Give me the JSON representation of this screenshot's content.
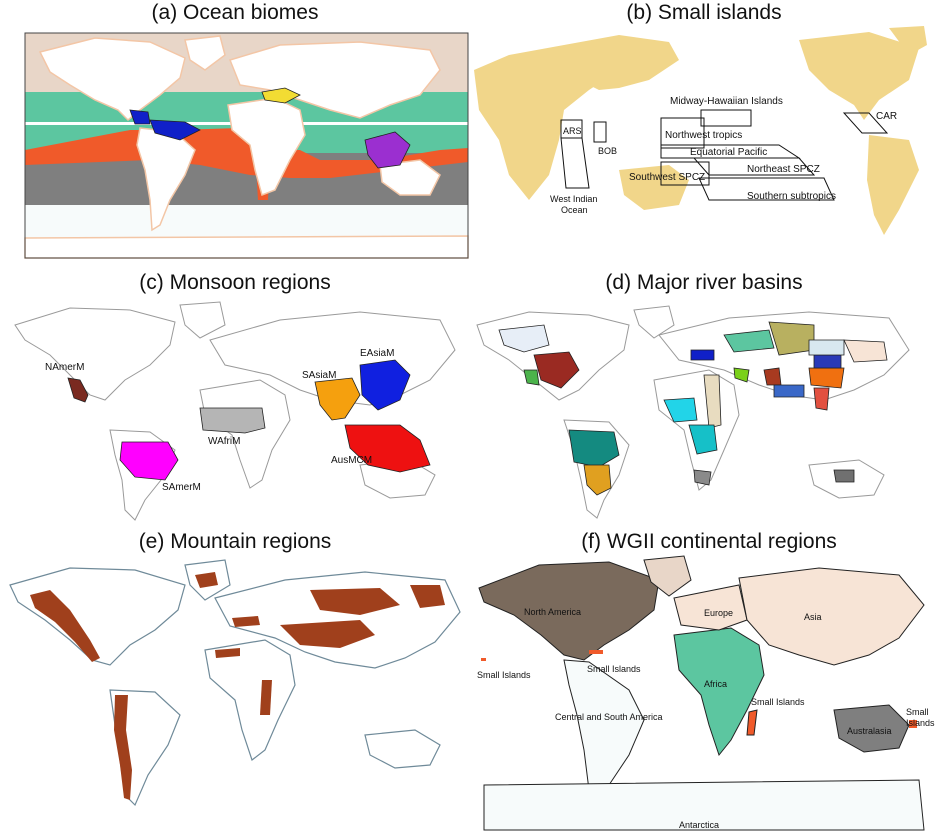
{
  "panels": {
    "a": {
      "title": "(a) Ocean biomes"
    },
    "b": {
      "title": "(b) Small islands",
      "labels": [
        "Midway-Hawaiian Islands",
        "CAR",
        "ARS",
        "BOB",
        "Northwest tropics",
        "Equatorial Pacific",
        "Northeast SPCZ",
        "Southwest SPCZ",
        "Southern subtropics",
        "West Indian",
        "Ocean"
      ]
    },
    "c": {
      "title": "(c) Monsoon regions",
      "labels": [
        "NAmerM",
        "SAsiaM",
        "EAsiaM",
        "WAfriM",
        "AusMCM",
        "SAmerM"
      ]
    },
    "d": {
      "title": "(d) Major river basins"
    },
    "e": {
      "title": "(e) Mountain regions"
    },
    "f": {
      "title": "(f) WGII continental regions",
      "labels": [
        "North America",
        "Europe",
        "Asia",
        "Small Islands",
        "Small Islands",
        "Africa",
        "Small Islands",
        "Central and South America",
        "Small",
        "Islands",
        "Australasia",
        "Antarctica"
      ]
    }
  },
  "colors": {
    "land_a": "#ffffff",
    "polar": "#e8d6c8",
    "subpolar": "#f7fbfb",
    "green": "#5cc6a0",
    "red": "#f05a2a",
    "gray": "#7f7f7f",
    "yellow": "#f2dc33",
    "blue": "#1020c8",
    "purple": "#9b2fd0",
    "island_land": "#f1d68a",
    "outline": "#9a9a9a",
    "mountain": "#a0401c",
    "mountain_outline": "#6f8a99"
  }
}
